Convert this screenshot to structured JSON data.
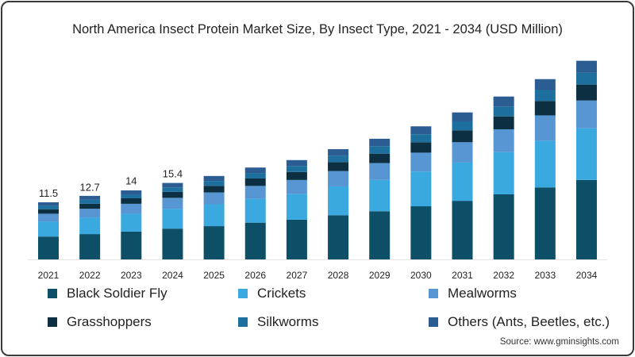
{
  "chart_data": {
    "type": "bar",
    "stacked": true,
    "title": "North America Insect Protein Market Size, By Insect Type, 2021 - 2034 (USD Million)",
    "xlabel": "",
    "ylabel": "",
    "ylim": [
      0,
      42
    ],
    "grid": false,
    "legend_position": "bottom",
    "categories": [
      "2021",
      "2022",
      "2023",
      "2024",
      "2025",
      "2026",
      "2027",
      "2028",
      "2029",
      "2030",
      "2031",
      "2032",
      "2033",
      "2034"
    ],
    "totals": [
      11.5,
      12.7,
      14,
      15.4,
      16.8,
      18.4,
      20.1,
      22.2,
      24.3,
      26.8,
      29.6,
      32.7,
      36.3,
      40.1
    ],
    "data_labels": [
      "11.5",
      "12.7",
      "14",
      "15.4"
    ],
    "series": [
      {
        "name": "Black Soldier Fly",
        "color": "#0d4f66",
        "values": [
          4.6,
          5.1,
          5.6,
          6.2,
          6.7,
          7.4,
          8.0,
          8.9,
          9.7,
          10.7,
          11.8,
          13.1,
          14.5,
          16.0
        ]
      },
      {
        "name": "Crickets",
        "color": "#3aa9df",
        "values": [
          3.0,
          3.3,
          3.6,
          4.0,
          4.4,
          4.8,
          5.2,
          5.8,
          6.3,
          7.0,
          7.7,
          8.5,
          9.4,
          10.4
        ]
      },
      {
        "name": "Mealworms",
        "color": "#5795d3",
        "values": [
          1.6,
          1.8,
          2.0,
          2.2,
          2.4,
          2.6,
          2.8,
          3.1,
          3.4,
          3.8,
          4.1,
          4.6,
          5.1,
          5.6
        ]
      },
      {
        "name": "Grasshoppers",
        "color": "#0c2f42",
        "values": [
          0.9,
          1.0,
          1.1,
          1.2,
          1.3,
          1.5,
          1.6,
          1.8,
          1.9,
          2.1,
          2.4,
          2.6,
          2.9,
          3.2
        ]
      },
      {
        "name": "Silkworms",
        "color": "#1d6f9e",
        "values": [
          0.7,
          0.8,
          0.8,
          0.9,
          1.0,
          1.1,
          1.2,
          1.3,
          1.5,
          1.6,
          1.8,
          2.0,
          2.2,
          2.4
        ]
      },
      {
        "name": "Others (Ants, Beetles, etc.)",
        "color": "#2b5c92",
        "values": [
          0.7,
          0.8,
          0.8,
          0.9,
          1.0,
          1.1,
          1.2,
          1.3,
          1.5,
          1.6,
          1.8,
          2.0,
          2.2,
          2.4
        ]
      }
    ]
  },
  "source": "Source: www.gminsights.com"
}
